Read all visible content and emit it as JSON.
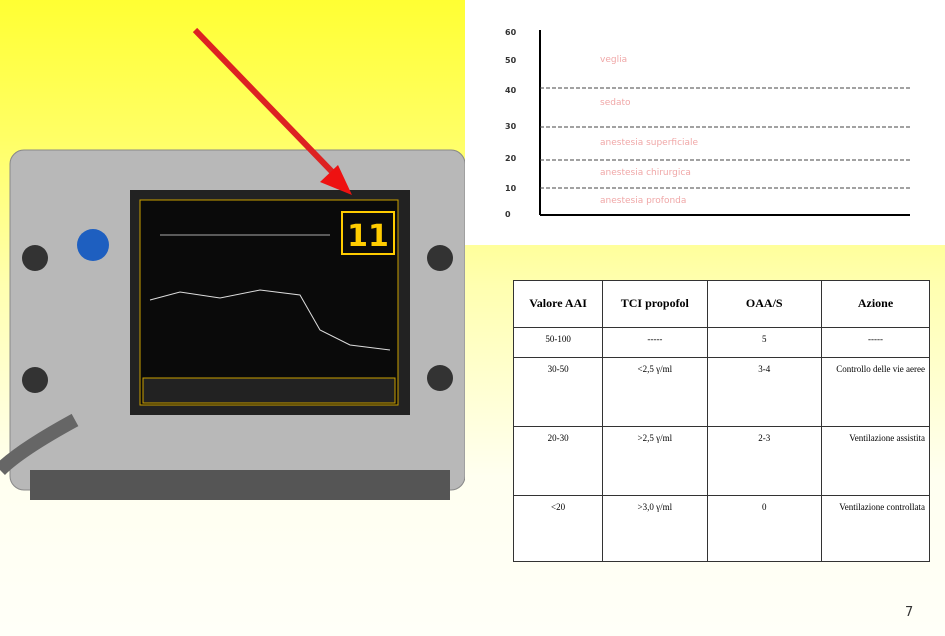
{
  "device": {
    "reading": "11"
  },
  "scale": {
    "levels": [
      "60",
      "50",
      "40",
      "30",
      "20",
      "10",
      "0"
    ],
    "bands": [
      "veglia",
      "sedato",
      "anestesia superficiale",
      "anestesia chirurgica",
      "anestesia profonda"
    ]
  },
  "table": {
    "header": [
      "Valore AAI",
      "TCI propofol",
      "OAA/S",
      "Azione"
    ],
    "rows": [
      [
        "50-100",
        "-----",
        "5",
        "-----"
      ],
      [
        "30-50",
        "<2,5 γ/ml",
        "3-4",
        "Controllo delle vie aeree"
      ],
      [
        "20-30",
        ">2,5 γ/ml",
        "2-3",
        "Ventilazione assistita"
      ],
      [
        "<20",
        ">3,0 γ/ml",
        "0",
        "Ventilazione controllata"
      ]
    ]
  },
  "page_number": "7"
}
